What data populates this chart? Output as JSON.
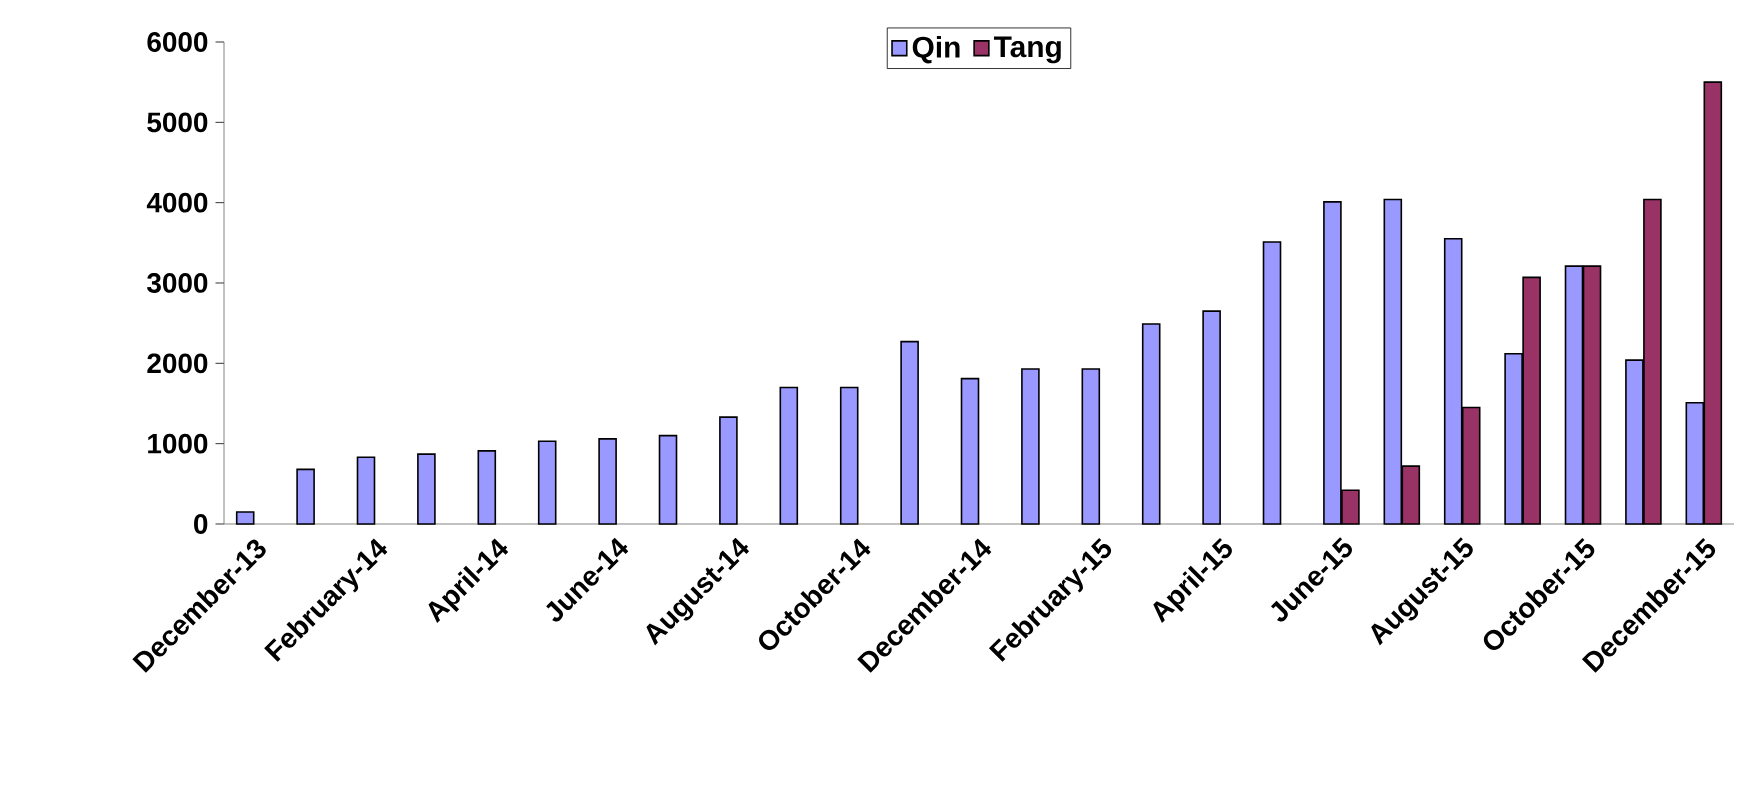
{
  "chart_data": {
    "type": "bar",
    "categories": [
      "December-13",
      null,
      "February-14",
      null,
      "April-14",
      null,
      "June-14",
      null,
      "August-14",
      null,
      "October-14",
      null,
      "December-14",
      null,
      "February-15",
      null,
      "April-15",
      null,
      "June-15",
      null,
      "August-15",
      null,
      "October-15",
      null,
      "December-15"
    ],
    "series": [
      {
        "name": "Qin",
        "color": "#9999ff",
        "values": [
          150,
          680,
          830,
          870,
          910,
          1030,
          1060,
          1100,
          1330,
          1700,
          1700,
          2270,
          1810,
          1930,
          1930,
          2490,
          2650,
          3510,
          4010,
          4040,
          3550,
          2120,
          3210,
          2040,
          1510
        ]
      },
      {
        "name": "Tang",
        "color": "#993366",
        "values": [
          null,
          null,
          null,
          null,
          null,
          null,
          null,
          null,
          null,
          null,
          null,
          null,
          null,
          null,
          null,
          null,
          null,
          null,
          420,
          720,
          1450,
          3070,
          3210,
          4040,
          5500
        ]
      }
    ],
    "ylim": [
      0,
      6000
    ],
    "yticks": [
      0,
      1000,
      2000,
      3000,
      4000,
      5000,
      6000
    ],
    "legend": "top"
  }
}
